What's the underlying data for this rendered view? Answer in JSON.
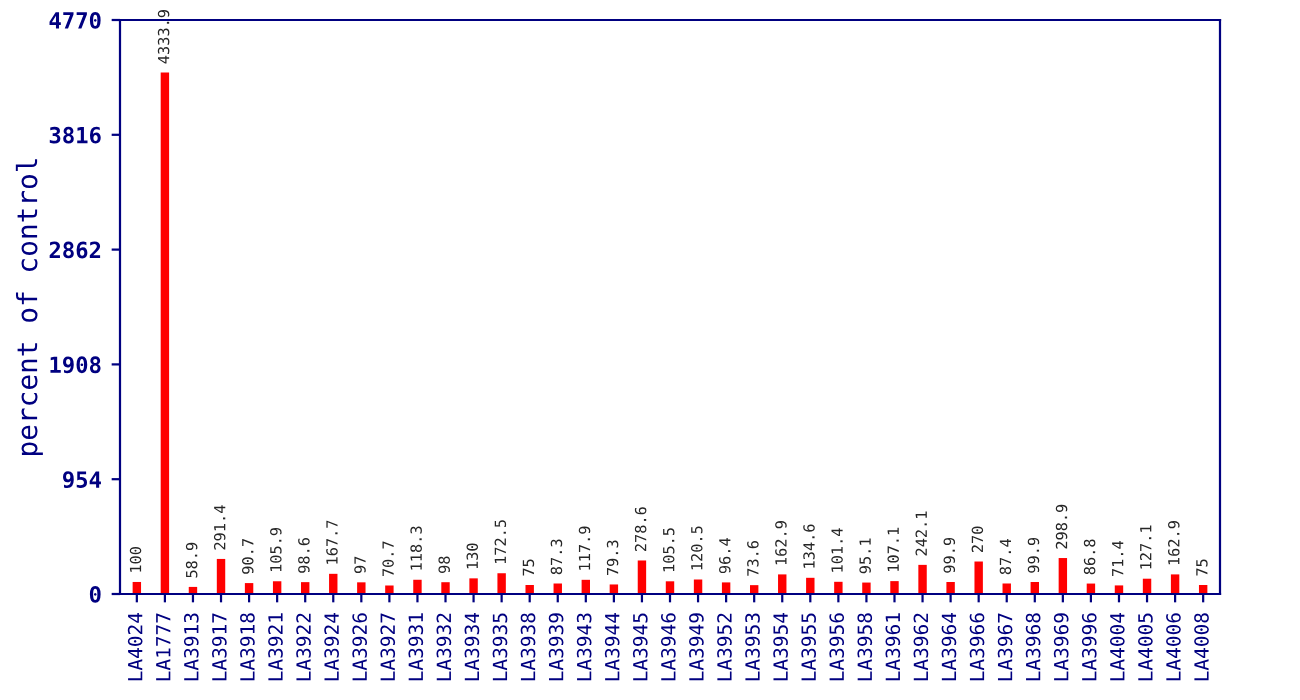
{
  "chart_data": {
    "type": "bar",
    "ylabel": "percent of control",
    "categories": [
      "LA4024",
      "LA1777",
      "LA3913",
      "LA3917",
      "LA3918",
      "LA3921",
      "LA3922",
      "LA3924",
      "LA3926",
      "LA3927",
      "LA3931",
      "LA3932",
      "LA3934",
      "LA3935",
      "LA3938",
      "LA3939",
      "LA3943",
      "LA3944",
      "LA3945",
      "LA3946",
      "LA3949",
      "LA3952",
      "LA3953",
      "LA3954",
      "LA3955",
      "LA3956",
      "LA3958",
      "LA3961",
      "LA3962",
      "LA3964",
      "LA3966",
      "LA3967",
      "LA3968",
      "LA3969",
      "LA3996",
      "LA4004",
      "LA4005",
      "LA4006",
      "LA4008"
    ],
    "values": [
      100,
      4333.9,
      58.9,
      291.4,
      90.7,
      105.9,
      98.6,
      167.7,
      97,
      70.7,
      118.3,
      98,
      130,
      172.5,
      75,
      87.3,
      117.9,
      79.3,
      278.6,
      105.5,
      120.5,
      96.4,
      73.6,
      162.9,
      134.6,
      101.4,
      95.1,
      107.1,
      242.1,
      99.9,
      270,
      87.4,
      99.9,
      298.9,
      86.8,
      71.4,
      127.1,
      162.9,
      75
    ],
    "color": "#ff0000",
    "ylim": [
      0,
      4770
    ],
    "yticks": [
      0,
      954,
      1908,
      2862,
      3816,
      4770
    ],
    "data_labels": true,
    "grid": false,
    "legend": false
  }
}
